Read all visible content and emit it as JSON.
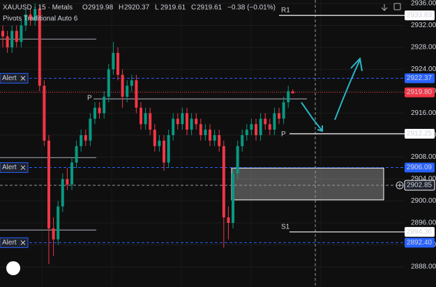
{
  "chart_data": {
    "type": "candlestick",
    "header": {
      "symbol": "XAUUSD · 15 · Metals",
      "ohlc_keys": [
        "O",
        "H",
        "L",
        "C"
      ],
      "ohlc_values": [
        "2919.98",
        "2920.37",
        "2919.61",
        "2919.61"
      ],
      "change": "−0.38 (−0.01%)",
      "indicator": "Pivots Traditional Auto 6"
    },
    "up_color": "#089981",
    "down_color": "#f23645",
    "ylim": [
      2888,
      2936
    ],
    "yticks": [
      {
        "value": 2888,
        "label": "2888.00"
      },
      {
        "value": 2892,
        "label": "2892.00"
      },
      {
        "value": 2896,
        "label": "2896.00"
      },
      {
        "value": 2900,
        "label": "2900.00"
      },
      {
        "value": 2904,
        "label": "2904.00"
      },
      {
        "value": 2908,
        "label": "2908.00"
      },
      {
        "value": 2912,
        "label": "2912.00"
      },
      {
        "value": 2916,
        "label": "2916.00"
      },
      {
        "value": 2920,
        "label": "2920.00"
      },
      {
        "value": 2924,
        "label": "2924.00"
      },
      {
        "value": 2928,
        "label": "2928.00"
      },
      {
        "value": 2932,
        "label": "2932.00"
      },
      {
        "value": 2936,
        "label": "2936.00"
      }
    ],
    "grid": true,
    "open": [
      2931,
      2930,
      2928,
      2931,
      2929,
      2932,
      2934,
      2933,
      2935,
      2921,
      2911,
      2895,
      2893,
      2899,
      2904,
      2903,
      2907,
      2910,
      2912,
      2911,
      2915,
      2917,
      2916,
      2919,
      2924,
      2927,
      2923,
      2919,
      2921,
      2922,
      2917,
      2914,
      2916,
      2913,
      2910,
      2911,
      2907,
      2912,
      2915,
      2914,
      2916,
      2913,
      2915,
      2914,
      2912,
      2913,
      2911,
      2912,
      2910,
      2897,
      2896,
      2905,
      2910,
      2912,
      2913,
      2914,
      2912,
      2915,
      2914,
      2913,
      2916,
      2915,
      2918,
      2919.98
    ],
    "high": [
      2932,
      2931,
      2932,
      2932,
      2933,
      2935,
      2935,
      2936,
      2935.5,
      2922,
      2912,
      2897,
      2900,
      2905,
      2906,
      2908,
      2911,
      2913,
      2913,
      2916,
      2918,
      2918,
      2920,
      2925,
      2929,
      2928,
      2924,
      2922,
      2923,
      2923,
      2918,
      2917,
      2917,
      2914,
      2912,
      2912,
      2913,
      2916,
      2916,
      2917,
      2917,
      2916,
      2916,
      2915,
      2914,
      2914,
      2913,
      2913,
      2911,
      2899,
      2906,
      2911,
      2913,
      2914,
      2915,
      2915,
      2916,
      2916,
      2915,
      2917,
      2917,
      2919,
      2921,
      2920.37
    ],
    "low": [
      2928,
      2927,
      2927,
      2928,
      2928,
      2931,
      2932,
      2932,
      2920,
      2910,
      2888.5,
      2890,
      2892,
      2898,
      2902,
      2902,
      2906,
      2909,
      2910,
      2910,
      2914,
      2915,
      2915,
      2918,
      2923,
      2922,
      2917,
      2918,
      2920,
      2916,
      2913,
      2913,
      2912,
      2909,
      2909,
      2905.5,
      2906,
      2911,
      2913,
      2913,
      2912,
      2912,
      2913,
      2911,
      2911,
      2910,
      2910,
      2909,
      2891.5,
      2893,
      2895,
      2904,
      2909,
      2911,
      2912,
      2911,
      2911,
      2913,
      2912,
      2912,
      2914,
      2914,
      2917,
      2919.61
    ],
    "close": [
      2930,
      2928,
      2931,
      2929,
      2932,
      2934,
      2933,
      2935,
      2921,
      2911,
      2895,
      2893,
      2899,
      2904,
      2903,
      2907,
      2910,
      2912,
      2911,
      2915,
      2917,
      2916,
      2919,
      2924,
      2927,
      2923,
      2919,
      2921,
      2922,
      2917,
      2914,
      2916,
      2913,
      2910,
      2911,
      2907,
      2912,
      2915,
      2914,
      2916,
      2913,
      2915,
      2914,
      2912,
      2913,
      2911,
      2912,
      2910,
      2897,
      2896,
      2905,
      2910,
      2912,
      2913,
      2914,
      2912,
      2915,
      2914,
      2913,
      2916,
      2915,
      2918,
      2920,
      2919.61
    ],
    "pivots": {
      "names": [
        "R1",
        "P",
        "S1"
      ],
      "values": [
        2933.83,
        2912.25,
        2894.36
      ]
    },
    "previous_pivots": {
      "label": "P",
      "values": [
        2929.5,
        2918.6,
        2907.9,
        2894.7
      ]
    },
    "alerts": {
      "label": "Alert",
      "values": [
        2922.37,
        2906.09,
        2892.4
      ],
      "value_labels": [
        "2922.37",
        "2906.09",
        "2892.40"
      ]
    },
    "last_price": 2919.8,
    "last_price_label": "2919.80",
    "crosshair_price": 2902.85,
    "zone": {
      "top": 2906,
      "bottom": 2900.2
    }
  }
}
